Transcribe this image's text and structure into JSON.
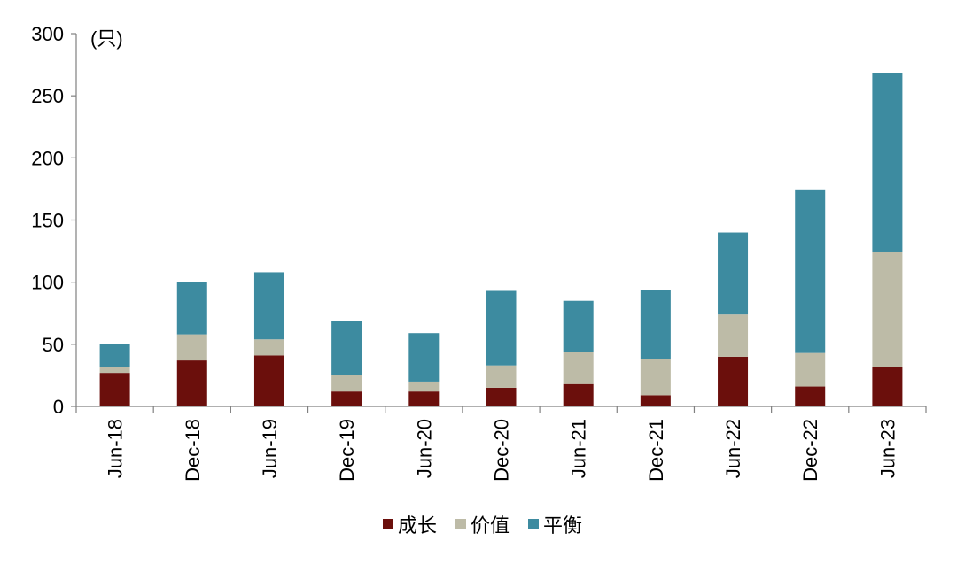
{
  "chart_data": {
    "type": "bar",
    "stacked": true,
    "title": "",
    "xlabel": "",
    "ylabel": "",
    "unit_label": "(只)",
    "ylim": [
      0,
      300
    ],
    "yticks": [
      0,
      50,
      100,
      150,
      200,
      250,
      300
    ],
    "grid": false,
    "legend_position": "bottom",
    "categories": [
      "Jun-18",
      "Dec-18",
      "Jun-19",
      "Dec-19",
      "Jun-20",
      "Dec-20",
      "Jun-21",
      "Dec-21",
      "Jun-22",
      "Dec-22",
      "Jun-23"
    ],
    "series": [
      {
        "name": "成长",
        "color": "#6B0F0C",
        "values": [
          27,
          37,
          41,
          12,
          12,
          15,
          18,
          9,
          40,
          16,
          32
        ]
      },
      {
        "name": "价值",
        "color": "#BDBBA7",
        "values": [
          5,
          21,
          13,
          13,
          8,
          18,
          26,
          29,
          34,
          27,
          92
        ]
      },
      {
        "name": "平衡",
        "color": "#3D8BA0",
        "values": [
          18,
          42,
          54,
          44,
          39,
          60,
          41,
          56,
          66,
          131,
          144
        ]
      }
    ]
  }
}
